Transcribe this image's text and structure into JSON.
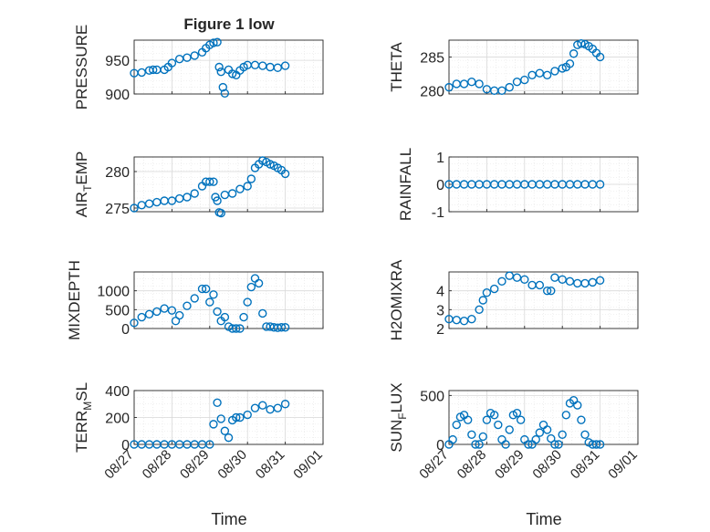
{
  "figure": {
    "title": "Figure 1 low",
    "xlabel": "Time",
    "x_ticks": [
      "08/27",
      "08/28",
      "08/29",
      "08/30",
      "08/31",
      "09/01"
    ],
    "marker_color": "#0072BD",
    "grid": "dotted minor grid",
    "x_range_days": [
      27,
      32
    ]
  },
  "chart_data": [
    {
      "id": "pressure",
      "type": "scatter",
      "ylabel": "PRESSURE",
      "ylim": [
        900,
        980
      ],
      "yticks": [
        900,
        950
      ],
      "series": [
        {
          "x": [
            27.0,
            27.2,
            27.4,
            27.5,
            27.6,
            27.8,
            27.9,
            28.0,
            28.2,
            28.4,
            28.6,
            28.8,
            28.9,
            29.0,
            29.1,
            29.2,
            29.25,
            29.3,
            29.35,
            29.4,
            29.5,
            29.6,
            29.7,
            29.8,
            29.9,
            30.0,
            30.2,
            30.4,
            30.6,
            30.8,
            31.0
          ],
          "y": [
            931,
            932,
            935,
            936,
            936,
            936,
            940,
            946,
            952,
            954,
            957,
            962,
            968,
            973,
            976,
            977,
            940,
            933,
            910,
            901,
            936,
            930,
            928,
            935,
            940,
            943,
            943,
            942,
            940,
            939,
            942
          ]
        }
      ]
    },
    {
      "id": "theta",
      "type": "scatter",
      "ylabel": "THETA",
      "ylim": [
        279.5,
        287.5
      ],
      "yticks": [
        280,
        285
      ],
      "series": [
        {
          "x": [
            27.0,
            27.2,
            27.4,
            27.6,
            27.8,
            28.0,
            28.2,
            28.4,
            28.6,
            28.8,
            29.0,
            29.2,
            29.4,
            29.6,
            29.8,
            30.0,
            30.1,
            30.2,
            30.3,
            30.4,
            30.5,
            30.6,
            30.7,
            30.8,
            30.9,
            31.0
          ],
          "y": [
            280.5,
            281.0,
            281.0,
            281.3,
            281.0,
            280.2,
            280.0,
            280.0,
            280.5,
            281.3,
            281.6,
            282.3,
            282.6,
            282.3,
            282.9,
            283.3,
            283.5,
            284.0,
            285.5,
            286.8,
            287.0,
            286.9,
            286.6,
            286.2,
            285.6,
            285.0
          ]
        }
      ]
    },
    {
      "id": "air_temp",
      "type": "scatter",
      "ylabel": "AIR_TEMP",
      "ylim": [
        274.5,
        282
      ],
      "yticks": [
        275,
        280
      ],
      "series": [
        {
          "x": [
            27.0,
            27.2,
            27.4,
            27.6,
            27.8,
            28.0,
            28.2,
            28.4,
            28.6,
            28.8,
            28.9,
            29.0,
            29.1,
            29.15,
            29.2,
            29.25,
            29.3,
            29.4,
            29.6,
            29.8,
            30.0,
            30.1,
            30.2,
            30.3,
            30.4,
            30.5,
            30.6,
            30.7,
            30.8,
            30.9,
            31.0
          ],
          "y": [
            275.0,
            275.4,
            275.6,
            275.8,
            276.0,
            276.0,
            276.3,
            276.5,
            277.0,
            278.0,
            278.6,
            278.6,
            278.6,
            276.5,
            276.0,
            274.4,
            274.3,
            276.8,
            277.0,
            277.6,
            278.0,
            279.0,
            280.5,
            281.0,
            281.5,
            281.3,
            281.0,
            280.8,
            280.5,
            280.2,
            279.7
          ]
        }
      ]
    },
    {
      "id": "rainfall",
      "type": "scatter",
      "ylabel": "RAINFALL",
      "ylim": [
        -1,
        1
      ],
      "yticks": [
        -1,
        0,
        1
      ],
      "series": [
        {
          "x": [
            27.0,
            27.2,
            27.4,
            27.6,
            27.8,
            28.0,
            28.2,
            28.4,
            28.6,
            28.8,
            29.0,
            29.2,
            29.4,
            29.6,
            29.8,
            30.0,
            30.2,
            30.4,
            30.6,
            30.8,
            31.0
          ],
          "y": [
            0,
            0,
            0,
            0,
            0,
            0,
            0,
            0,
            0,
            0,
            0,
            0,
            0,
            0,
            0,
            0,
            0,
            0,
            0,
            0,
            0
          ]
        }
      ]
    },
    {
      "id": "mixdepth",
      "type": "scatter",
      "ylabel": "MIXDEPTH",
      "ylim": [
        0,
        1500
      ],
      "yticks": [
        0,
        500,
        1000
      ],
      "series": [
        {
          "x": [
            27.0,
            27.2,
            27.4,
            27.6,
            27.8,
            28.0,
            28.1,
            28.2,
            28.4,
            28.6,
            28.8,
            28.9,
            29.0,
            29.1,
            29.2,
            29.3,
            29.4,
            29.5,
            29.6,
            29.7,
            29.8,
            29.9,
            30.0,
            30.1,
            30.2,
            30.3,
            30.4,
            30.5,
            30.6,
            30.7,
            30.8,
            30.9,
            31.0
          ],
          "y": [
            150,
            300,
            380,
            450,
            530,
            480,
            200,
            350,
            600,
            800,
            1050,
            1050,
            700,
            900,
            450,
            200,
            300,
            50,
            0,
            0,
            0,
            300,
            700,
            1100,
            1330,
            1200,
            400,
            50,
            50,
            30,
            20,
            30,
            30
          ]
        }
      ]
    },
    {
      "id": "h2omixra",
      "type": "scatter",
      "ylabel": "H2OMIXRA",
      "ylim": [
        2,
        5
      ],
      "yticks": [
        2,
        3,
        4
      ],
      "series": [
        {
          "x": [
            27.0,
            27.2,
            27.4,
            27.6,
            27.8,
            27.9,
            28.0,
            28.2,
            28.4,
            28.6,
            28.8,
            29.0,
            29.2,
            29.4,
            29.6,
            29.7,
            29.8,
            30.0,
            30.2,
            30.4,
            30.6,
            30.8,
            31.0
          ],
          "y": [
            2.5,
            2.45,
            2.4,
            2.5,
            3.0,
            3.5,
            3.9,
            4.1,
            4.5,
            4.8,
            4.7,
            4.6,
            4.3,
            4.3,
            4.0,
            4.0,
            4.7,
            4.6,
            4.5,
            4.4,
            4.4,
            4.45,
            4.55
          ]
        }
      ]
    },
    {
      "id": "terr_msl",
      "type": "scatter",
      "ylabel": "TERR_MSL",
      "ylim": [
        0,
        400
      ],
      "yticks": [
        0,
        200,
        400
      ],
      "series": [
        {
          "x": [
            27.0,
            27.2,
            27.4,
            27.6,
            27.8,
            28.0,
            28.2,
            28.4,
            28.6,
            28.8,
            29.0,
            29.1,
            29.2,
            29.3,
            29.4,
            29.5,
            29.6,
            29.7,
            29.8,
            30.0,
            30.2,
            30.4,
            30.6,
            30.8,
            31.0
          ],
          "y": [
            0,
            0,
            0,
            0,
            0,
            0,
            0,
            0,
            0,
            0,
            0,
            150,
            310,
            190,
            100,
            50,
            180,
            200,
            200,
            220,
            270,
            290,
            260,
            270,
            300
          ]
        }
      ]
    },
    {
      "id": "sun_flux",
      "type": "scatter",
      "ylabel": "SUN_FLUX",
      "ylim": [
        0,
        550
      ],
      "yticks": [
        0,
        500
      ],
      "series": [
        {
          "x": [
            27.0,
            27.1,
            27.2,
            27.3,
            27.4,
            27.5,
            27.6,
            27.7,
            27.8,
            27.9,
            28.0,
            28.1,
            28.2,
            28.3,
            28.4,
            28.5,
            28.6,
            28.7,
            28.8,
            28.9,
            29.0,
            29.1,
            29.2,
            29.3,
            29.4,
            29.5,
            29.6,
            29.7,
            29.8,
            29.9,
            30.0,
            30.1,
            30.2,
            30.3,
            30.4,
            30.5,
            30.6,
            30.7,
            30.8,
            30.9,
            31.0
          ],
          "y": [
            0,
            50,
            200,
            280,
            300,
            250,
            100,
            0,
            0,
            80,
            250,
            320,
            300,
            200,
            50,
            0,
            150,
            300,
            320,
            250,
            50,
            0,
            0,
            50,
            120,
            200,
            150,
            60,
            0,
            0,
            100,
            300,
            420,
            450,
            400,
            250,
            100,
            20,
            0,
            0,
            0
          ]
        }
      ]
    }
  ]
}
